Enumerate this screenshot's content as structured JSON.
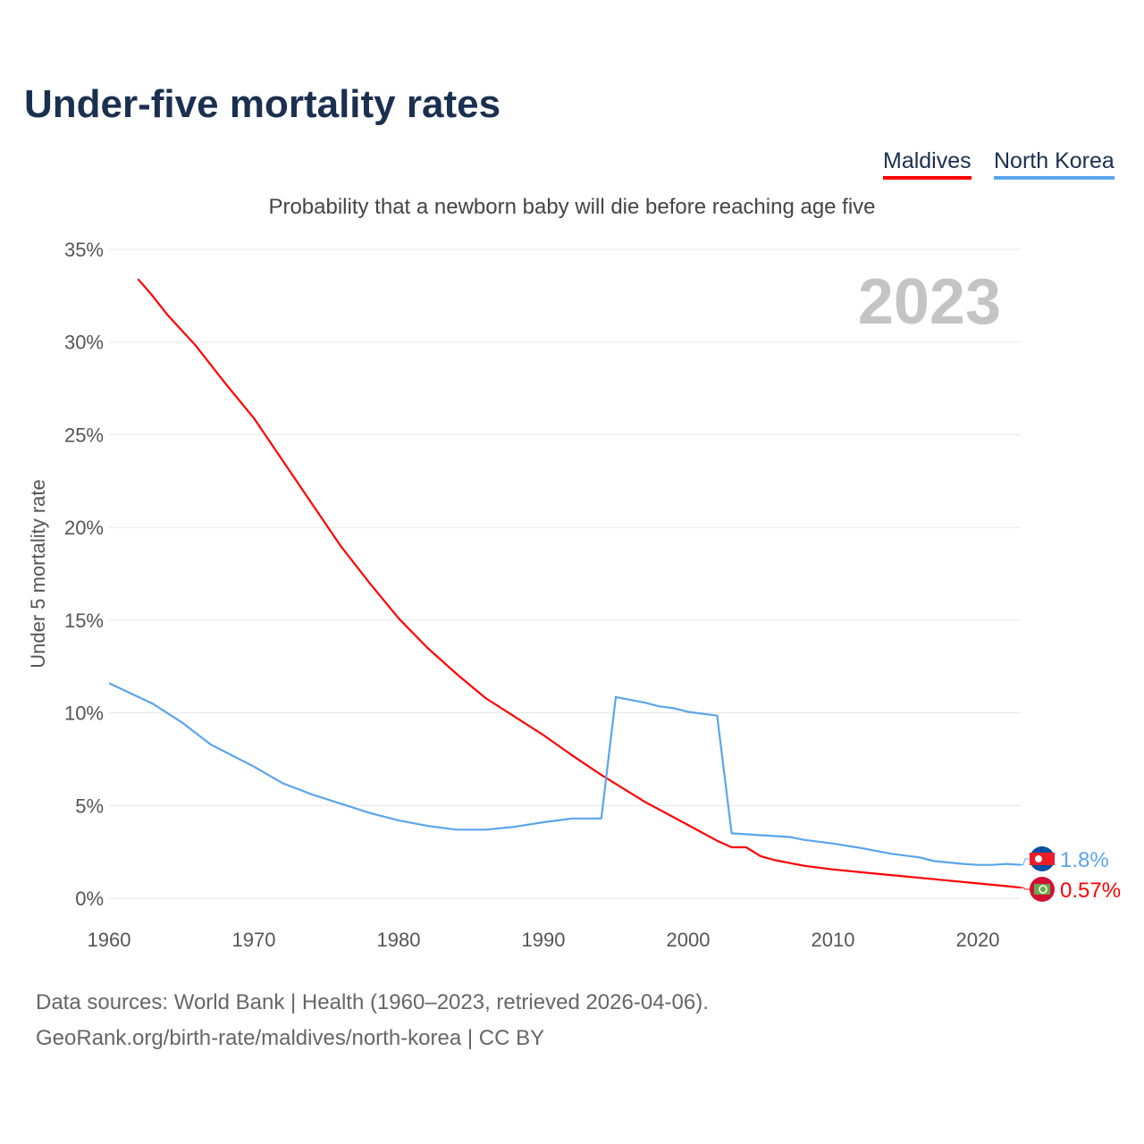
{
  "title": "Under-five mortality rates",
  "subtitle": "Probability that a newborn baby will die before reaching age five",
  "source_line1": "Data sources: World Bank | Health (1960–2023, retrieved 2026-04-06).",
  "source_line2": "GeoRank.org/birth-rate/maldives/north-korea | CC BY",
  "chart_data": {
    "type": "line",
    "title": "Under-five mortality rates",
    "ylabel": "Under 5 mortality rate",
    "xlabel": "",
    "year_label": "2023",
    "xlim": [
      1960,
      2023
    ],
    "ylim": [
      0,
      35
    ],
    "xticks": [
      1960,
      1970,
      1980,
      1990,
      2000,
      2010,
      2020
    ],
    "yticks": [
      {
        "v": 0,
        "label": "0%"
      },
      {
        "v": 5,
        "label": "5%"
      },
      {
        "v": 10,
        "label": "10%"
      },
      {
        "v": 15,
        "label": "15%"
      },
      {
        "v": 20,
        "label": "20%"
      },
      {
        "v": 25,
        "label": "25%"
      },
      {
        "v": 30,
        "label": "30%"
      },
      {
        "v": 35,
        "label": "35%"
      }
    ],
    "grid": true,
    "legend_position": "top-right",
    "series": [
      {
        "name": "Maldives",
        "color": "#ff0000",
        "end_label": "0.57%",
        "x": [
          1962,
          1963,
          1964,
          1966,
          1968,
          1970,
          1972,
          1974,
          1976,
          1978,
          1980,
          1982,
          1984,
          1986,
          1988,
          1990,
          1992,
          1994,
          1997,
          2000,
          2002,
          2003,
          2004,
          2005,
          2006,
          2007,
          2008,
          2010,
          2012,
          2014,
          2016,
          2018,
          2020,
          2022,
          2023
        ],
        "y": [
          33.4,
          32.5,
          31.5,
          29.8,
          27.8,
          25.9,
          23.6,
          21.3,
          19.0,
          17.0,
          15.1,
          13.5,
          12.1,
          10.8,
          9.8,
          8.8,
          7.7,
          6.65,
          5.2,
          3.95,
          3.1,
          2.75,
          2.75,
          2.27,
          2.05,
          1.9,
          1.75,
          1.55,
          1.4,
          1.25,
          1.1,
          0.95,
          0.8,
          0.65,
          0.57
        ]
      },
      {
        "name": "North Korea",
        "color": "#5aa5ec",
        "end_label": "1.8%",
        "x": [
          1960,
          1963,
          1965,
          1967,
          1970,
          1972,
          1974,
          1976,
          1978,
          1980,
          1982,
          1984,
          1986,
          1988,
          1990,
          1992,
          1994,
          1995,
          1996,
          1997,
          1998,
          1999,
          2000,
          2001,
          2002,
          2003,
          2004,
          2005,
          2006,
          2007,
          2008,
          2010,
          2012,
          2014,
          2016,
          2017,
          2019,
          2020,
          2021,
          2022,
          2023
        ],
        "y": [
          11.6,
          10.5,
          9.5,
          8.3,
          7.1,
          6.2,
          5.6,
          5.1,
          4.6,
          4.2,
          3.9,
          3.7,
          3.7,
          3.85,
          4.1,
          4.3,
          4.3,
          10.85,
          10.7,
          10.55,
          10.35,
          10.25,
          10.05,
          9.95,
          9.85,
          3.5,
          3.45,
          3.4,
          3.35,
          3.3,
          3.15,
          2.95,
          2.7,
          2.4,
          2.2,
          2.0,
          1.85,
          1.8,
          1.8,
          1.85,
          1.8
        ]
      }
    ]
  }
}
